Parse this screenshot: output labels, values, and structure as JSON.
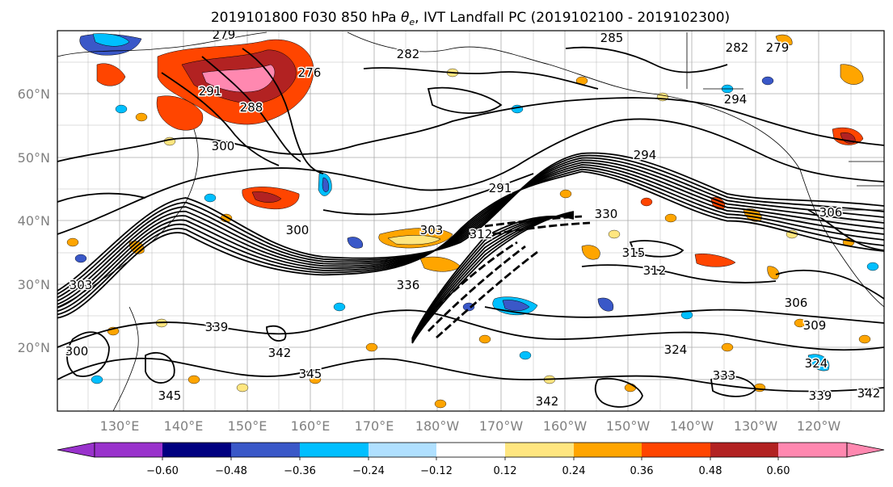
{
  "title_text": "2019101800 F030 850 hPa θe, IVT Landfall PC (2019102100 - 2019102300)",
  "title": {
    "prefix": "2019101800 F030 850 hPa ",
    "symbol": "θ",
    "subscript": "e",
    "suffix": ", IVT Landfall PC (2019102100 - 2019102300)"
  },
  "lat_labels": [
    "60°N",
    "50°N",
    "40°N",
    "30°N",
    "20°N"
  ],
  "lon_labels": [
    "130°E",
    "140°E",
    "150°E",
    "160°E",
    "170°E",
    "180°W",
    "170°W",
    "160°W",
    "150°W",
    "140°W",
    "130°W",
    "120°W"
  ],
  "colorbar": {
    "tick_labels": [
      "−0.60",
      "−0.48",
      "−0.36",
      "−0.24",
      "−0.12",
      "0.12",
      "0.24",
      "0.36",
      "0.48",
      "0.60"
    ],
    "colors": [
      "#9932cc",
      "#000080",
      "#3a58c8",
      "#00bfff",
      "#b0e0ff",
      "#ffffff",
      "#ffe680",
      "#ffa500",
      "#ff4500",
      "#b22222",
      "#ff88b0"
    ]
  },
  "contour_labels": [
    "279",
    "282",
    "285",
    "282",
    "279",
    "276",
    "291",
    "288",
    "294",
    "300",
    "291",
    "294",
    "300",
    "303",
    "330",
    "312",
    "315",
    "312",
    "336",
    "306",
    "309",
    "339",
    "342",
    "345",
    "324",
    "333",
    "324",
    "339",
    "342",
    "345",
    "342",
    "306",
    "303",
    "300"
  ],
  "chart_data": {
    "type": "heatmap",
    "title": "2019101800 F030 850 hPa θe, IVT Landfall PC (2019102100 - 2019102300)",
    "lat_ticks": [
      60,
      50,
      40,
      30,
      20
    ],
    "lon_ticks": [
      130,
      140,
      150,
      160,
      170,
      180,
      -170,
      -160,
      -150,
      -140,
      -130,
      -120
    ],
    "lat_range": [
      10,
      70
    ],
    "lon_range": [
      120,
      -115
    ],
    "shading": "IVT landfall PC correlation",
    "contours": "850 hPa theta-e (K)",
    "contour_levels_shown": [
      276,
      279,
      282,
      285,
      288,
      291,
      294,
      300,
      303,
      306,
      309,
      312,
      315,
      324,
      330,
      333,
      336,
      339,
      342,
      345
    ],
    "colorbar_levels": [
      -0.6,
      -0.48,
      -0.36,
      -0.24,
      -0.12,
      0.12,
      0.24,
      0.36,
      0.48,
      0.6
    ],
    "colorbar_extend": "both",
    "grid": true
  }
}
